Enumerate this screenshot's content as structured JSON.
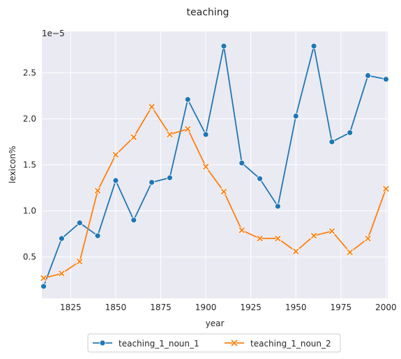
{
  "chart_data": {
    "type": "line",
    "title": "teaching",
    "xlabel": "year",
    "ylabel": "lexicon%",
    "y_offset_label": "1e−5",
    "x": [
      1810,
      1820,
      1830,
      1840,
      1850,
      1860,
      1870,
      1880,
      1890,
      1900,
      1910,
      1920,
      1930,
      1940,
      1950,
      1960,
      1970,
      1980,
      1990,
      2000
    ],
    "x_ticks": [
      1825,
      1850,
      1875,
      1900,
      1925,
      1950,
      1975,
      2000
    ],
    "y_ticks": [
      0.5,
      1.0,
      1.5,
      2.0,
      2.5
    ],
    "y_tick_labels": [
      "0.5",
      "1.0",
      "1.5",
      "2.0",
      "2.5"
    ],
    "xlim": [
      1809,
      2001
    ],
    "ylim": [
      0.05,
      2.95
    ],
    "grid": true,
    "legend_position": "bottom-center",
    "series": [
      {
        "name": "teaching_1_noun_1",
        "color": "#1f77b4",
        "marker": "circle",
        "values": [
          0.18,
          0.7,
          0.87,
          0.73,
          1.33,
          0.9,
          1.31,
          1.36,
          2.21,
          1.83,
          2.79,
          1.52,
          1.35,
          1.05,
          2.03,
          2.79,
          1.75,
          1.85,
          2.47,
          2.43
        ]
      },
      {
        "name": "teaching_1_noun_2",
        "color": "#ff7f0e",
        "marker": "x",
        "values": [
          0.27,
          0.32,
          0.45,
          1.22,
          1.61,
          1.8,
          2.13,
          1.83,
          1.89,
          1.48,
          1.21,
          0.79,
          0.7,
          0.7,
          0.56,
          0.73,
          0.78,
          0.55,
          0.7,
          1.24
        ]
      }
    ]
  }
}
